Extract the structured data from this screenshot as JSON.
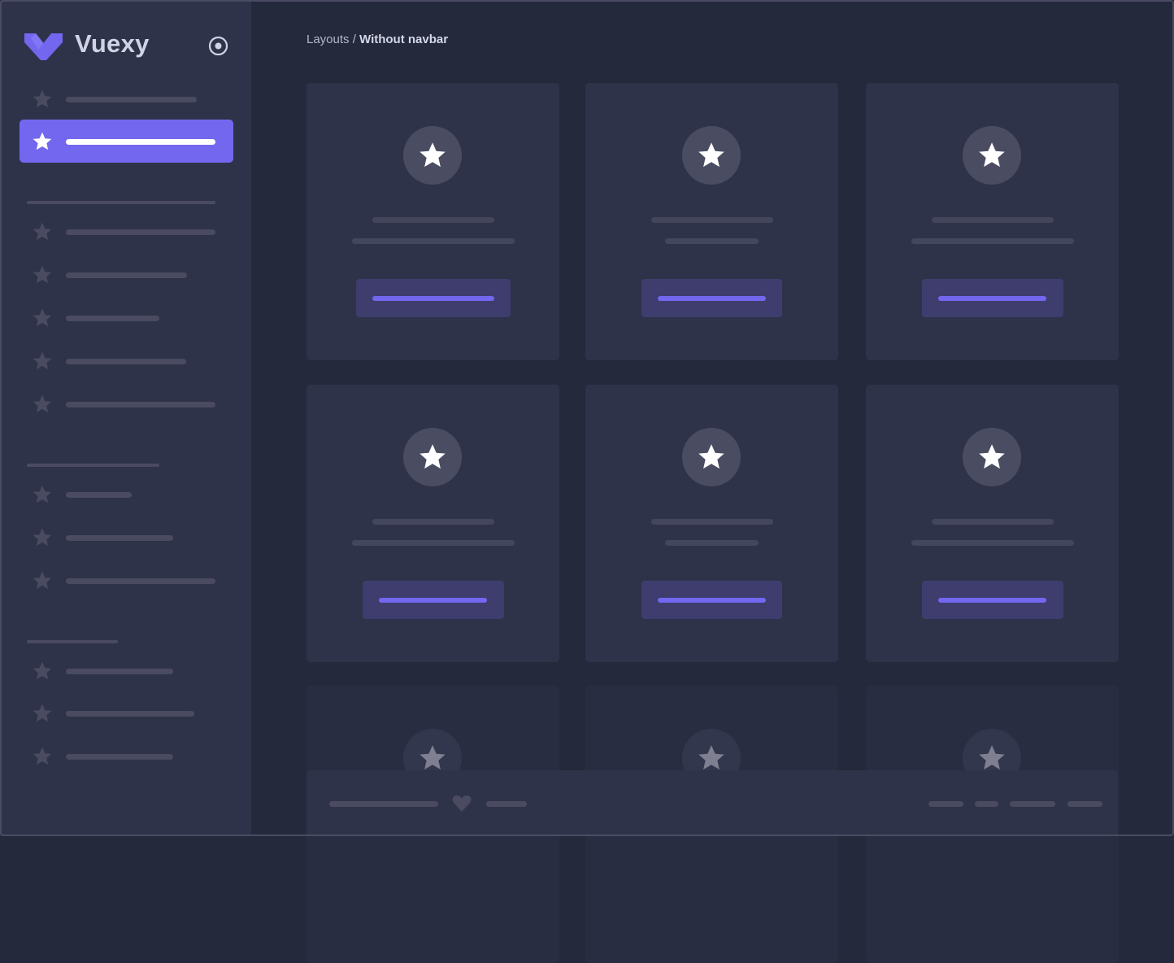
{
  "brand": {
    "name": "Vuexy",
    "color": "#7367f0"
  },
  "breadcrumb": {
    "parent": "Layouts /",
    "current": "Without navbar"
  },
  "colors": {
    "primary": "#7367f0",
    "sidebar": "#2f3349",
    "background": "#25293c",
    "card": "#2f3349"
  },
  "icons": {
    "logo": "vuexy-logo-icon",
    "toggle": "radio-circle-icon",
    "menu": "star-icon",
    "card": "star-icon",
    "footer": "heart-icon"
  },
  "sidebar": {
    "active_index": 1
  }
}
